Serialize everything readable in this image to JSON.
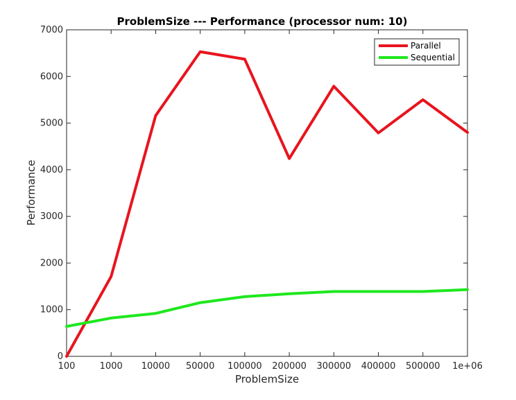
{
  "chart_data": {
    "type": "line",
    "title": "ProblemSize --- Performance (processor num: 10)",
    "xlabel": "ProblemSize",
    "ylabel": "Performance",
    "categories": [
      "100",
      "1000",
      "10000",
      "50000",
      "100000",
      "200000",
      "300000",
      "400000",
      "500000",
      "1e+06"
    ],
    "ylim": [
      0,
      7000
    ],
    "yticks": [
      0,
      1000,
      2000,
      3000,
      4000,
      5000,
      6000,
      7000
    ],
    "grid": false,
    "legend_position": "top-right",
    "series": [
      {
        "name": "Parallel",
        "color": "#e8141e",
        "values": [
          0,
          1710,
          5160,
          6530,
          6370,
          4240,
          5790,
          4790,
          5500,
          4800
        ]
      },
      {
        "name": "Sequential",
        "color": "#1ee81e",
        "values": [
          640,
          820,
          920,
          1150,
          1280,
          1340,
          1390,
          1390,
          1390,
          1430
        ]
      }
    ]
  }
}
